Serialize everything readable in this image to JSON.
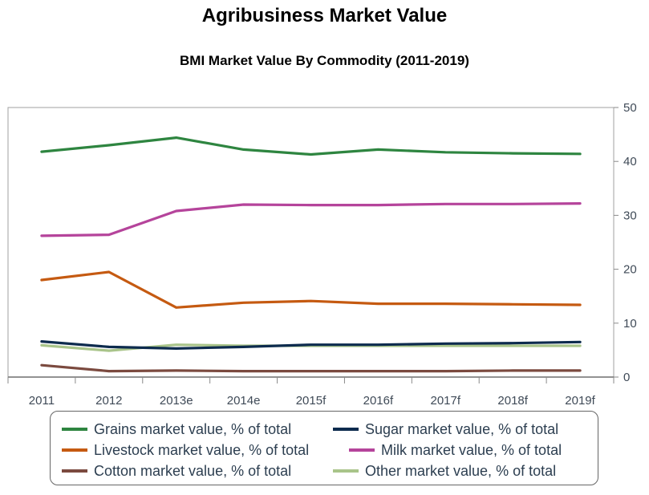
{
  "header": {
    "title": "Agribusiness Market Value",
    "subtitle": "BMI Market Value By Commodity (2011-2019)"
  },
  "chart_data": {
    "type": "line",
    "title": "Agribusiness Market Value",
    "subtitle": "BMI Market Value By Commodity (2011-2019)",
    "xlabel": "",
    "ylabel": "",
    "categories": [
      "2011",
      "2012",
      "2013e",
      "2014e",
      "2015f",
      "2016f",
      "2017f",
      "2018f",
      "2019f"
    ],
    "ylim": [
      0,
      50
    ],
    "yticks": [
      0,
      10,
      20,
      30,
      40,
      50
    ],
    "y_axis_side": "right",
    "legend_position": "bottom",
    "series": [
      {
        "name": "Grains market value, % of total",
        "color": "#2e8540",
        "values": [
          41.8,
          43.0,
          44.4,
          42.2,
          41.3,
          42.2,
          41.7,
          41.5,
          41.4
        ]
      },
      {
        "name": "Sugar market value, % of total",
        "color": "#0d2b4e",
        "values": [
          6.6,
          5.6,
          5.3,
          5.6,
          6.0,
          6.0,
          6.2,
          6.3,
          6.5
        ]
      },
      {
        "name": "Livestock market value, % of total",
        "color": "#c55a11",
        "values": [
          18.0,
          19.5,
          12.9,
          13.8,
          14.1,
          13.6,
          13.6,
          13.5,
          13.4
        ]
      },
      {
        "name": "Milk market value, % of total",
        "color": "#b5449b",
        "values": [
          26.2,
          26.4,
          30.8,
          32.0,
          31.9,
          31.9,
          32.1,
          32.1,
          32.2
        ]
      },
      {
        "name": "Cotton market value, % of total",
        "color": "#7b4a3f",
        "values": [
          2.2,
          1.1,
          1.2,
          1.1,
          1.1,
          1.1,
          1.1,
          1.2,
          1.2
        ]
      },
      {
        "name": "Other market value, % of total",
        "color": "#a9c48a",
        "values": [
          5.9,
          4.9,
          6.0,
          5.8,
          5.8,
          5.8,
          5.8,
          5.8,
          5.8
        ]
      }
    ]
  }
}
